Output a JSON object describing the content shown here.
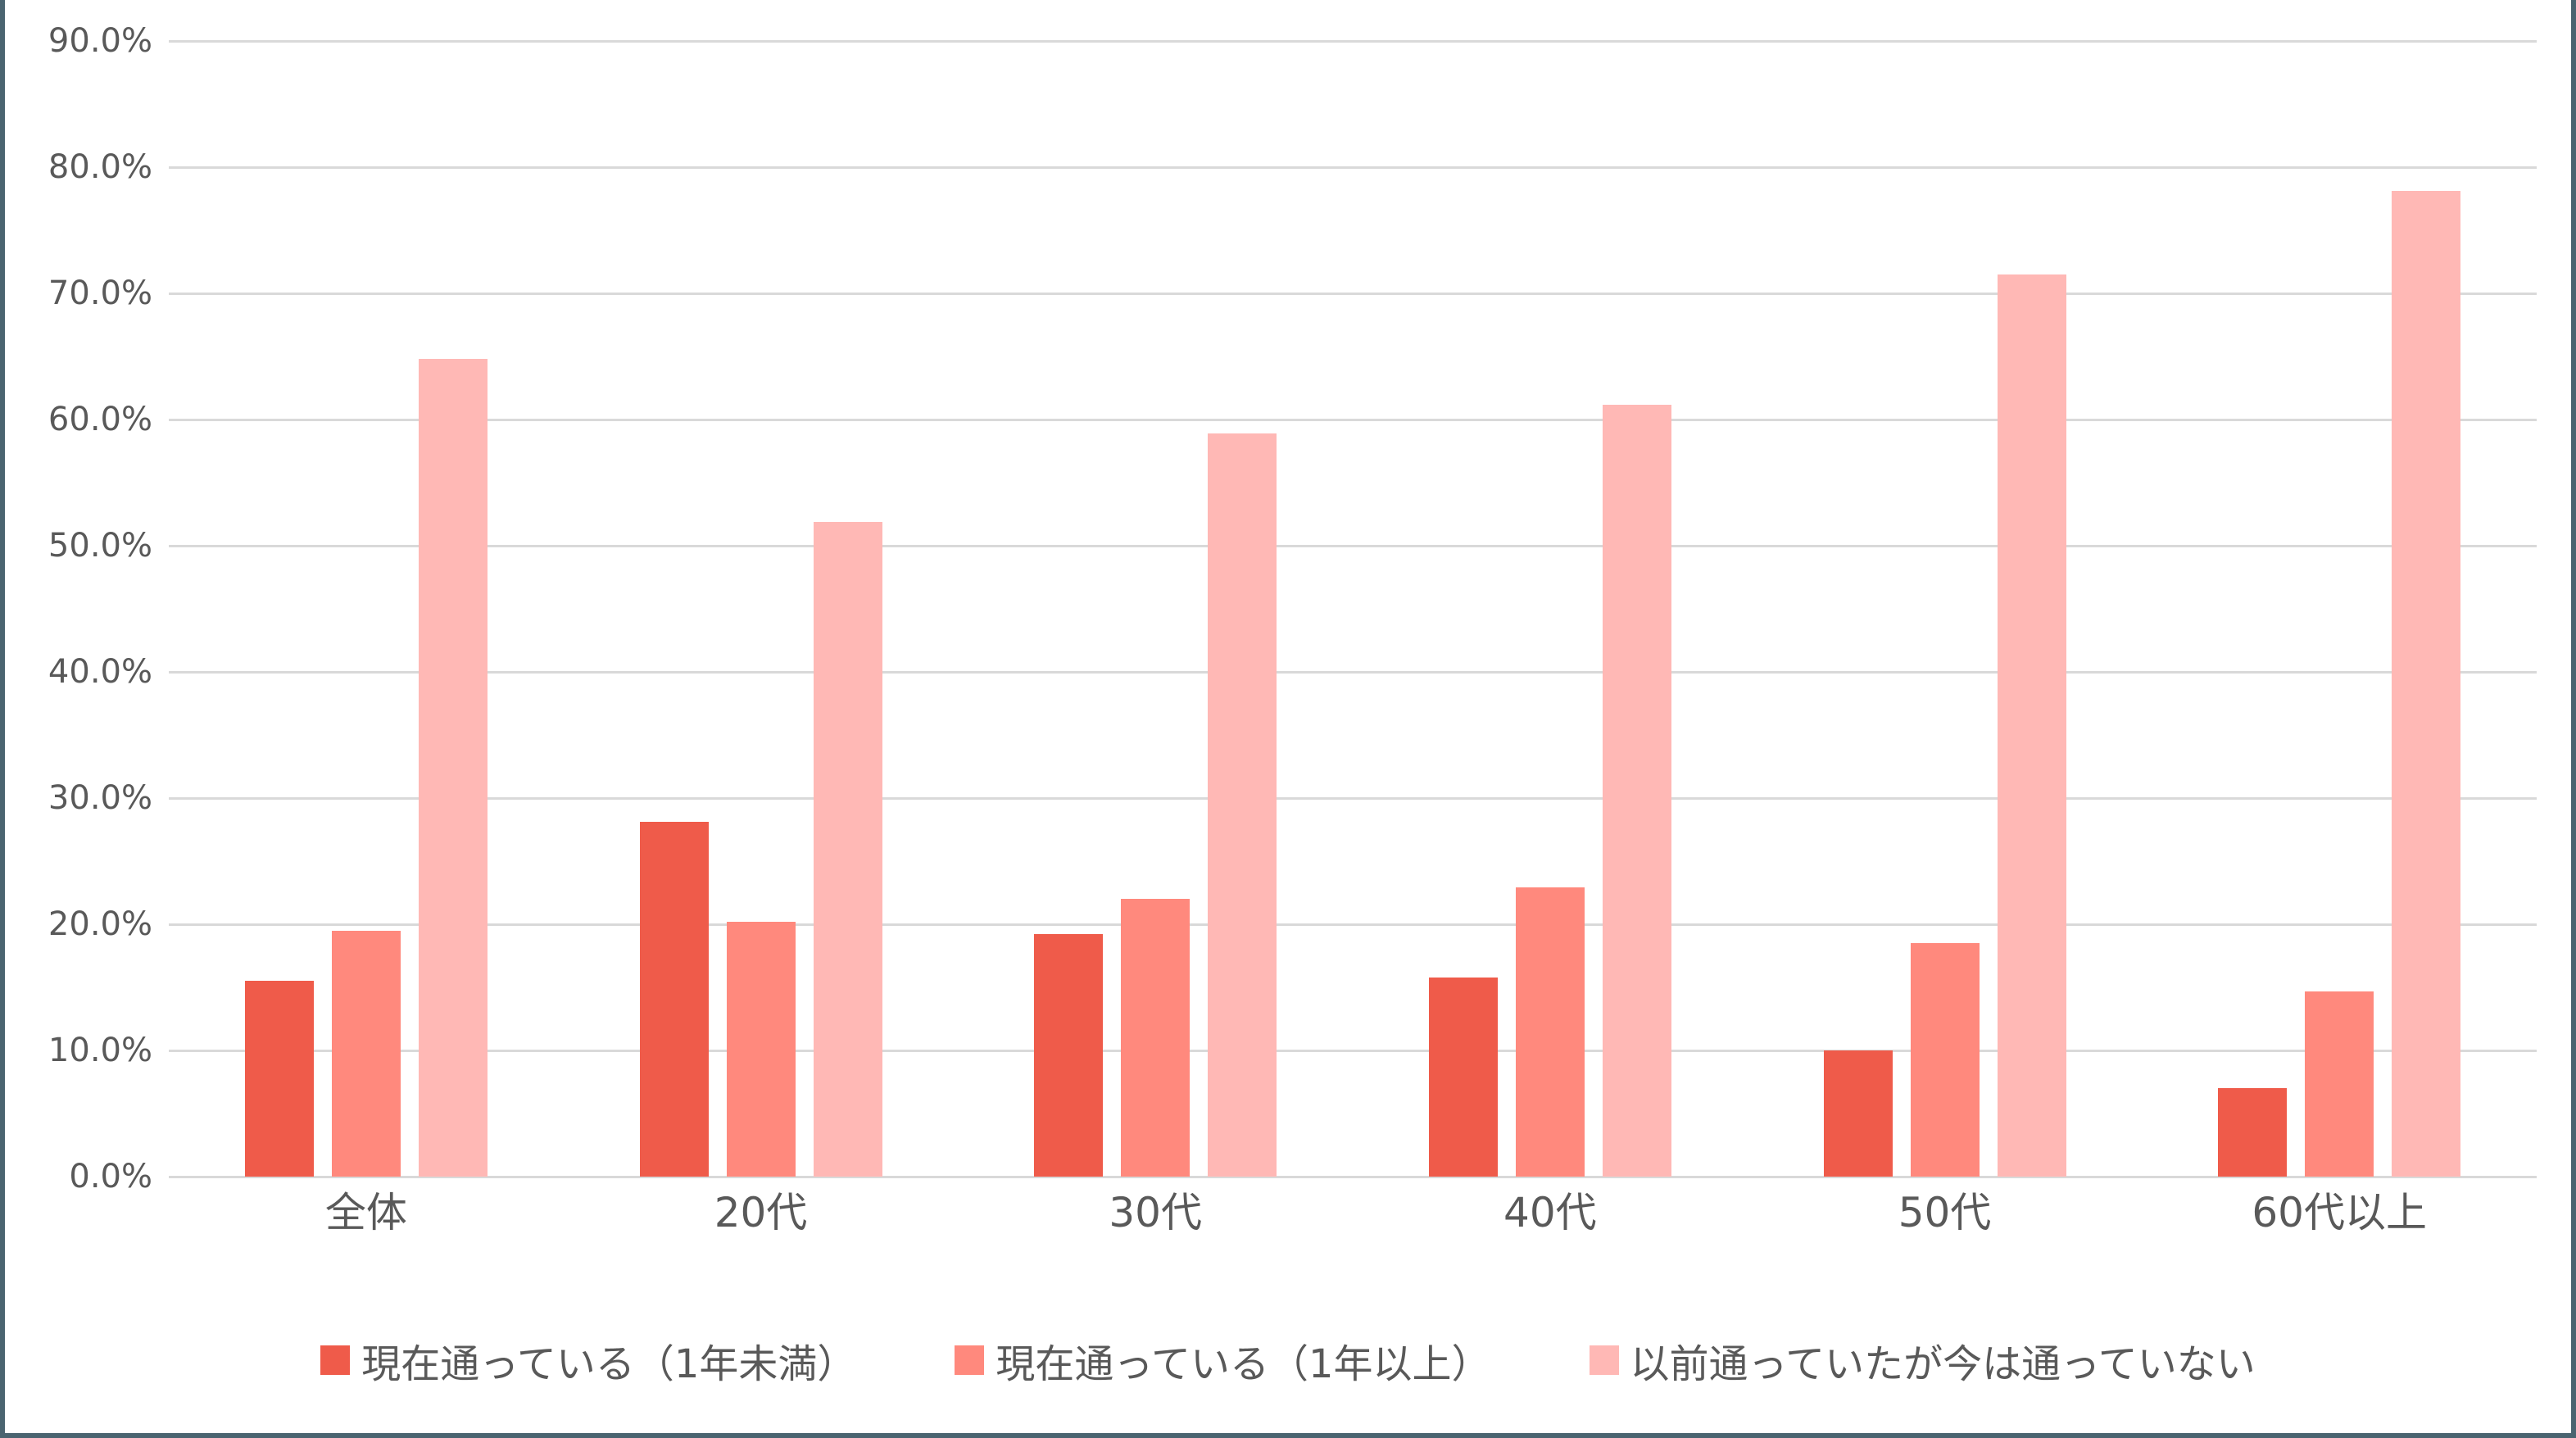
{
  "chart_data": {
    "type": "bar",
    "title": "",
    "xlabel": "",
    "ylabel": "",
    "ylim": [
      0,
      90
    ],
    "y_ticks": [
      "0.0%",
      "10.0%",
      "20.0%",
      "30.0%",
      "40.0%",
      "50.0%",
      "60.0%",
      "70.0%",
      "80.0%",
      "90.0%"
    ],
    "grid": true,
    "legend_position": "bottom",
    "categories": [
      "全体",
      "20代",
      "30代",
      "40代",
      "50代",
      "60代以上"
    ],
    "series": [
      {
        "name": "現在通っている（1年未満）",
        "color": "#ef5b4a",
        "values": [
          15.5,
          28.1,
          19.2,
          15.8,
          10.0,
          7.0
        ]
      },
      {
        "name": "現在通っている（1年以上）",
        "color": "#ff897d",
        "values": [
          19.5,
          20.2,
          22.0,
          22.9,
          18.5,
          14.7
        ]
      },
      {
        "name": "以前通っていたが今は通っていない",
        "color": "#ffb8b5",
        "values": [
          64.8,
          51.9,
          58.9,
          61.2,
          71.5,
          78.1
        ]
      }
    ]
  }
}
